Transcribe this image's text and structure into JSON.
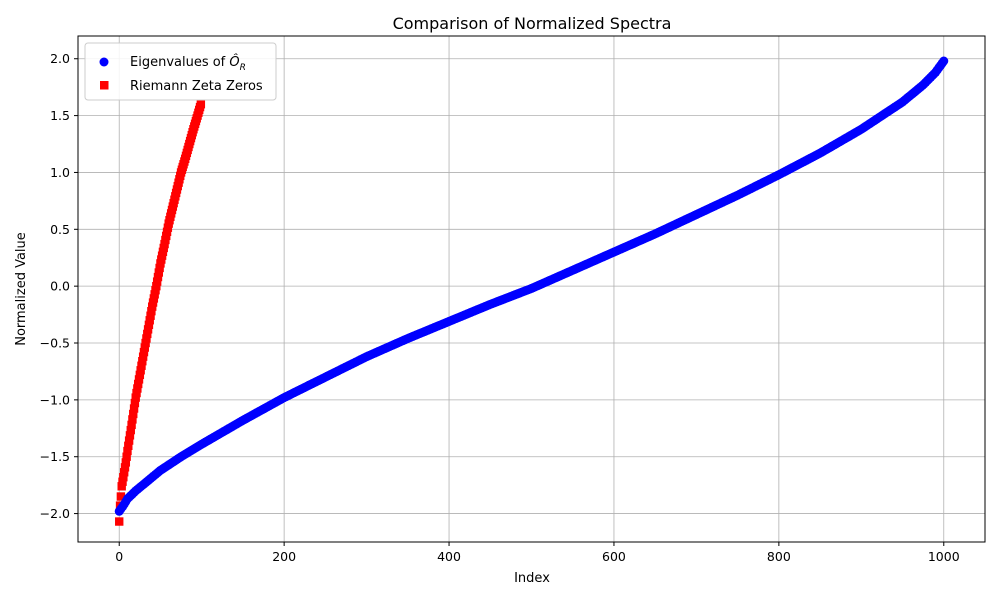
{
  "chart_data": {
    "type": "scatter",
    "title": "Comparison of Normalized Spectra",
    "xlabel": "Index",
    "ylabel": "Normalized Value",
    "xlim": [
      -50,
      1050
    ],
    "ylim": [
      -2.25,
      2.2
    ],
    "x_ticks": [
      0,
      200,
      400,
      600,
      800,
      1000
    ],
    "x_tick_labels": [
      "0",
      "200",
      "400",
      "600",
      "800",
      "1000"
    ],
    "y_ticks": [
      -2.0,
      -1.5,
      -1.0,
      -0.5,
      0.0,
      0.5,
      1.0,
      1.5,
      2.0
    ],
    "y_tick_labels": [
      "−2.0",
      "−1.5",
      "−1.0",
      "−0.5",
      "0.0",
      "0.5",
      "1.0",
      "1.5",
      "2.0"
    ],
    "grid": true,
    "legend_position": "top-left",
    "series": [
      {
        "name_prefix": "Eigenvalues of ",
        "name_symbol": "Ô",
        "name_subscript": "R",
        "marker": "circle",
        "color": "#0000ff",
        "x": [
          0,
          5,
          10,
          20,
          30,
          40,
          50,
          75,
          100,
          150,
          200,
          250,
          300,
          350,
          400,
          450,
          500,
          550,
          600,
          650,
          700,
          750,
          800,
          850,
          900,
          950,
          975,
          990,
          1000
        ],
        "y": [
          -1.98,
          -1.93,
          -1.87,
          -1.8,
          -1.74,
          -1.68,
          -1.62,
          -1.5,
          -1.39,
          -1.18,
          -0.98,
          -0.8,
          -0.62,
          -0.46,
          -0.31,
          -0.16,
          -0.02,
          0.14,
          0.3,
          0.46,
          0.63,
          0.8,
          0.98,
          1.17,
          1.38,
          1.62,
          1.77,
          1.88,
          1.98
        ]
      },
      {
        "name": "Riemann Zeta Zeros",
        "marker": "square",
        "color": "#ff0000",
        "x": [
          0,
          1,
          2,
          3,
          5,
          8,
          10,
          15,
          20,
          25,
          30,
          35,
          40,
          45,
          50,
          55,
          60,
          65,
          70,
          75,
          80,
          85,
          90,
          95,
          99
        ],
        "y": [
          -2.07,
          -1.93,
          -1.85,
          -1.76,
          -1.68,
          -1.55,
          -1.45,
          -1.22,
          -0.98,
          -0.78,
          -0.58,
          -0.38,
          -0.18,
          0.0,
          0.2,
          0.37,
          0.55,
          0.7,
          0.85,
          1.0,
          1.12,
          1.25,
          1.38,
          1.5,
          1.6
        ]
      }
    ]
  }
}
